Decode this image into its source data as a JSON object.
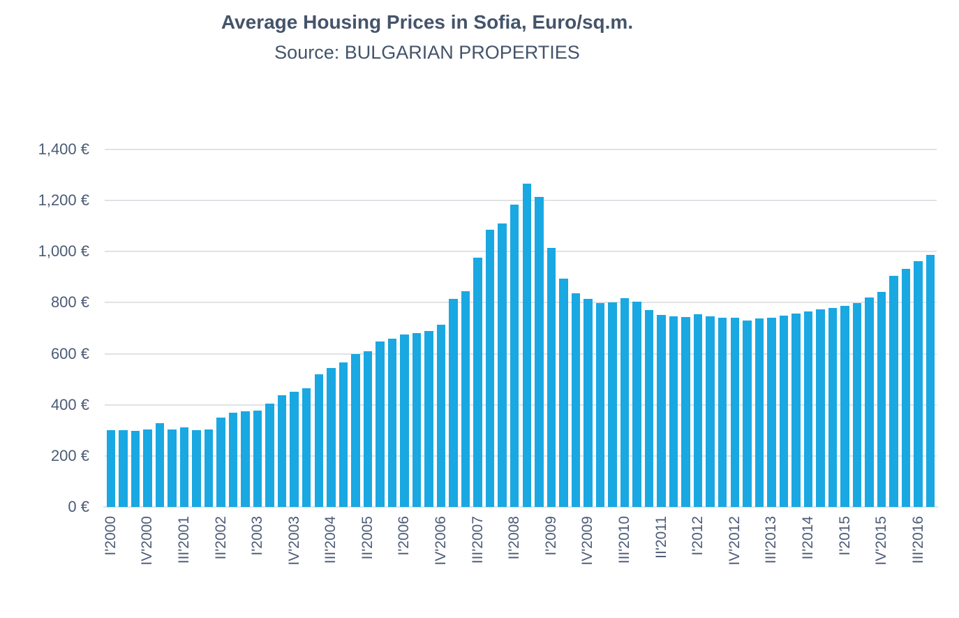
{
  "title": "Average Housing Prices in Sofia, Euro/sq.m.",
  "subtitle": "Source: BULGARIAN PROPERTIES",
  "chart_data": {
    "type": "bar",
    "title": "Average Housing Prices in Sofia, Euro/sq.m.",
    "subtitle": "Source: BULGARIAN PROPERTIES",
    "unit": "Euro per square meter",
    "categories": [
      "I'2000",
      "II'2000",
      "III'2000",
      "IV'2000",
      "I'2001",
      "II'2001",
      "III'2001",
      "IV'2001",
      "I'2002",
      "II'2002",
      "III'2002",
      "IV'2002",
      "I'2003",
      "II'2003",
      "III'2003",
      "IV'2003",
      "I'2004",
      "II'2004",
      "III'2004",
      "IV'2004",
      "I'2005",
      "II'2005",
      "III'2005",
      "IV'2005",
      "I'2006",
      "II'2006",
      "III'2006",
      "IV'2006",
      "I'2007",
      "II'2007",
      "III'2007",
      "IV'2007",
      "I'2008",
      "II'2008",
      "III'2008",
      "IV'2008",
      "I'2009",
      "II'2009",
      "III'2009",
      "IV'2009",
      "I'2010",
      "II'2010",
      "III'2010",
      "IV'2010",
      "I'2011",
      "II'2011",
      "III'2011",
      "IV'2011",
      "I'2012",
      "II'2012",
      "III'2012",
      "IV'2012",
      "I'2013",
      "II'2013",
      "III'2013",
      "IV'2013",
      "I'2014",
      "II'2014",
      "III'2014",
      "IV'2014",
      "I'2015",
      "II'2015",
      "III'2015",
      "IV'2015",
      "I'2016",
      "II'2016",
      "III'2016",
      "IV'2016"
    ],
    "values": [
      300,
      300,
      297,
      303,
      327,
      304,
      313,
      300,
      304,
      350,
      369,
      375,
      377,
      405,
      437,
      450,
      465,
      520,
      545,
      565,
      600,
      610,
      648,
      660,
      675,
      680,
      690,
      715,
      815,
      845,
      975,
      1085,
      1110,
      1185,
      1265,
      1215,
      1015,
      895,
      838,
      815,
      799,
      802,
      817,
      805,
      770,
      753,
      747,
      743,
      754,
      747,
      741,
      741,
      730,
      739,
      742,
      749,
      757,
      766,
      774,
      778,
      787,
      799,
      820,
      841,
      905,
      932,
      963,
      987
    ],
    "x_tick_labels": [
      "I'2000",
      "IV'2000",
      "III'2001",
      "II'2002",
      "I'2003",
      "IV'2003",
      "III'2004",
      "II'2005",
      "I'2006",
      "IV'2006",
      "III'2007",
      "II'2008",
      "I'2009",
      "IV'2009",
      "III'2010",
      "II'2011",
      "I'2012",
      "IV'2012",
      "III'2013",
      "II'2014",
      "I'2015",
      "IV'2015",
      "III'2016"
    ],
    "x_label_interval": 3,
    "y_tick_labels": [
      "0 €",
      "200 €",
      "400 €",
      "600 €",
      "800 €",
      "1,000 €",
      "1,200 €",
      "1,400 €"
    ],
    "ylim": [
      0,
      1400
    ],
    "y_step": 200,
    "grid": true,
    "legend": "none",
    "bar_color": "#1AA8E2",
    "grid_color": "#E1E2E6",
    "axis_text_color": "#4C5B76",
    "title_color": "#44546A",
    "background": "#FFFFFF"
  }
}
